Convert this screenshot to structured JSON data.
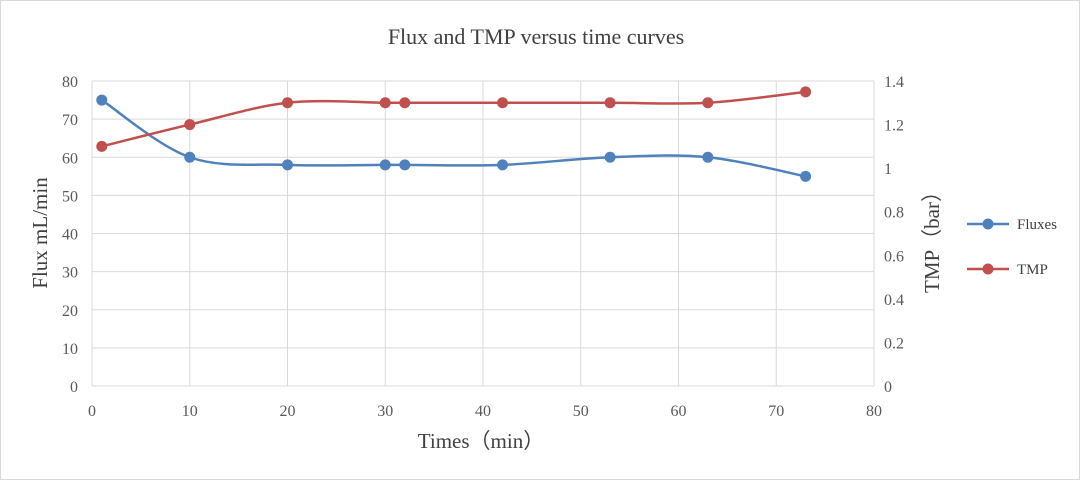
{
  "chart_data": {
    "type": "line",
    "title": "Flux and TMP versus time curves",
    "xlabel": "Times（min）",
    "ylabel": "Flux mL/min",
    "y2label": "TMP（bar）",
    "xlim": [
      0,
      80
    ],
    "ylim": [
      0,
      80
    ],
    "y2lim": [
      0,
      1.4
    ],
    "xticks": [
      "0",
      "10",
      "20",
      "30",
      "40",
      "50",
      "60",
      "70",
      "80"
    ],
    "yticks": [
      "0",
      "10",
      "20",
      "30",
      "40",
      "50",
      "60",
      "70",
      "80"
    ],
    "y2ticks": [
      "0",
      "0.2",
      "0.4",
      "0.6",
      "0.8",
      "1",
      "1.2",
      "1.4"
    ],
    "grid": true,
    "smooth": true,
    "legend_position": "right",
    "series": [
      {
        "name": "Fluxes",
        "axis": "left",
        "color": "#4f81bd",
        "x": [
          1,
          10,
          20,
          30,
          32,
          42,
          53,
          63,
          73
        ],
        "y": [
          75,
          60,
          58,
          58,
          58,
          58,
          60,
          60,
          55
        ]
      },
      {
        "name": "TMP",
        "axis": "right",
        "color": "#c0504d",
        "x": [
          1,
          10,
          20,
          30,
          32,
          42,
          53,
          63,
          73
        ],
        "y": [
          1.1,
          1.2,
          1.3,
          1.3,
          1.3,
          1.3,
          1.3,
          1.3,
          1.35
        ]
      }
    ]
  }
}
